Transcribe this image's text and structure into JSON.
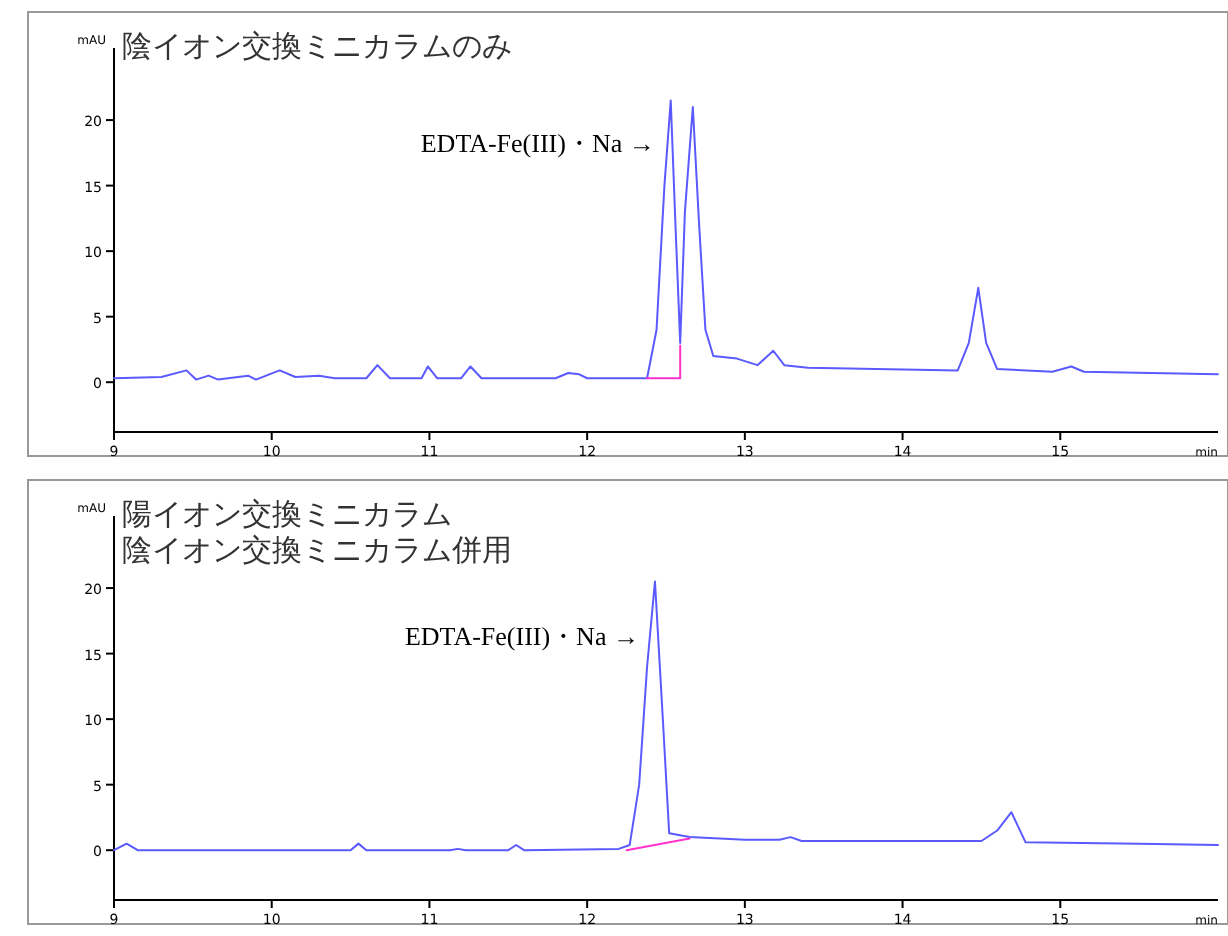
{
  "chart_data": [
    {
      "type": "line",
      "title": "陰イオン交換ミニカラムのみ",
      "xlabel": "min",
      "ylabel": "mAU",
      "xlim": [
        9,
        16
      ],
      "xticks": [
        9,
        10,
        11,
        12,
        13,
        14,
        15
      ],
      "ylim": [
        -3.8,
        25.5
      ],
      "yticks": [
        0,
        5,
        10,
        15,
        20
      ],
      "grid": false,
      "series": [
        {
          "color": "#5a5aff",
          "x": [
            9.0,
            9.3,
            9.46,
            9.52,
            9.6,
            9.66,
            9.85,
            9.9,
            10.05,
            10.15,
            10.3,
            10.4,
            10.6,
            10.67,
            10.75,
            10.95,
            10.99,
            11.05,
            11.2,
            11.26,
            11.33,
            11.8,
            11.88,
            11.95,
            12.0,
            12.38,
            12.44,
            12.49,
            12.53,
            12.56,
            12.59,
            12.62,
            12.67,
            12.71,
            12.75,
            12.8,
            12.95,
            13.08,
            13.18,
            13.25,
            13.4,
            14.35,
            14.42,
            14.48,
            14.53,
            14.6,
            14.95,
            15.07,
            15.15,
            16.0
          ],
          "values": [
            0.3,
            0.4,
            0.9,
            0.2,
            0.5,
            0.2,
            0.5,
            0.2,
            0.9,
            0.4,
            0.5,
            0.3,
            0.3,
            1.3,
            0.3,
            0.3,
            1.2,
            0.3,
            0.3,
            1.2,
            0.3,
            0.3,
            0.7,
            0.6,
            0.3,
            0.3,
            4,
            15,
            21.5,
            12,
            3,
            13,
            21,
            12,
            4,
            2,
            1.8,
            1.3,
            2.4,
            1.3,
            1.1,
            0.9,
            3,
            7.2,
            3,
            1,
            0.8,
            1.2,
            0.8,
            0.6
          ]
        },
        {
          "color": "#ff33cc",
          "x": [
            12.38,
            12.59,
            12.59
          ],
          "values": [
            0.3,
            0.3,
            2.8
          ]
        }
      ],
      "annotations": [
        {
          "text": "EDTA-Fe(III)・Na →",
          "x": 12.53,
          "y": 18.2
        }
      ]
    },
    {
      "type": "line",
      "title": "陽イオン交換ミニカラム",
      "subtitle": "陰イオン交換ミニカラム併用",
      "xlabel": "min",
      "ylabel": "mAU",
      "xlim": [
        9,
        16
      ],
      "xticks": [
        9,
        10,
        11,
        12,
        13,
        14,
        15
      ],
      "ylim": [
        -3.8,
        25.5
      ],
      "yticks": [
        0,
        5,
        10,
        15,
        20
      ],
      "grid": false,
      "series": [
        {
          "color": "#5a5aff",
          "x": [
            9.0,
            9.08,
            9.15,
            10.5,
            10.55,
            10.6,
            11.13,
            11.18,
            11.23,
            11.5,
            11.55,
            11.6,
            12.2,
            12.27,
            12.33,
            12.38,
            12.43,
            12.48,
            12.52,
            12.65,
            13.0,
            13.22,
            13.29,
            13.36,
            14.5,
            14.6,
            14.69,
            14.78,
            15.5,
            16.0
          ],
          "values": [
            0,
            0.5,
            0,
            0,
            0.5,
            0,
            0,
            0.1,
            0,
            0,
            0.4,
            0,
            0.1,
            0.4,
            5,
            14,
            20.5,
            10,
            1.3,
            1.0,
            0.8,
            0.8,
            1.0,
            0.7,
            0.7,
            1.5,
            2.9,
            0.6,
            0.5,
            0.4
          ]
        },
        {
          "color": "#ff33cc",
          "x": [
            12.25,
            12.65
          ],
          "values": [
            0,
            0.9
          ]
        }
      ],
      "annotations": [
        {
          "text": "EDTA-Fe(III)・Na →",
          "x": 12.43,
          "y": 16.3
        }
      ]
    }
  ]
}
